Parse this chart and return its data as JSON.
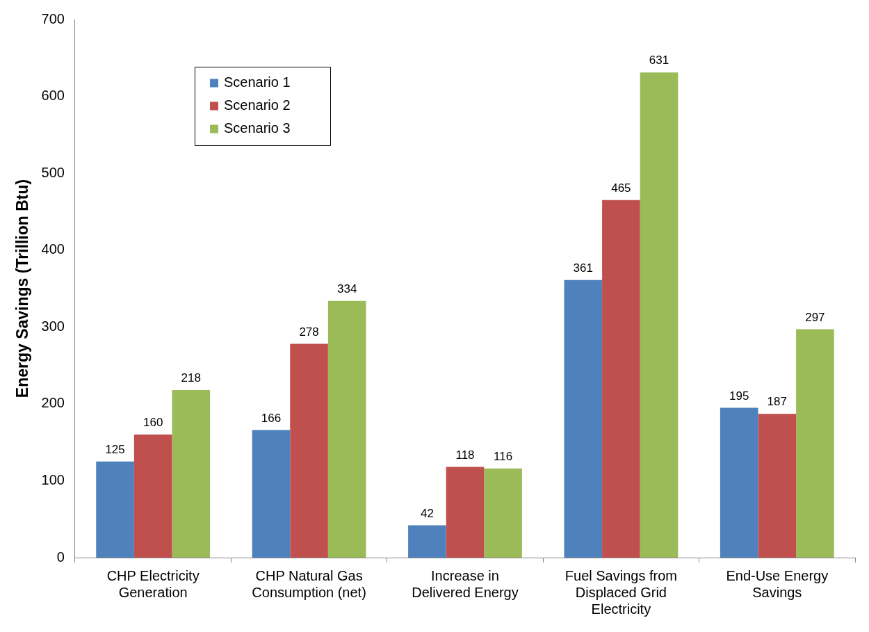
{
  "chart_data": {
    "type": "bar",
    "ylabel": "Energy Savings (Trillion Btu)",
    "categories": [
      "CHP Electricity Generation",
      "CHP Natural Gas Consumption (net)",
      "Increase in Delivered Energy",
      "Fuel Savings from Displaced Grid Electricity",
      "End-Use Energy Savings"
    ],
    "series": [
      {
        "name": "Scenario 1",
        "color": "#4f81bd",
        "values": [
          125,
          166,
          42,
          361,
          195
        ]
      },
      {
        "name": "Scenario 2",
        "color": "#c0504d",
        "values": [
          160,
          278,
          118,
          465,
          187
        ]
      },
      {
        "name": "Scenario 3",
        "color": "#9bbb59",
        "values": [
          218,
          334,
          116,
          631,
          297
        ]
      }
    ],
    "ylim": [
      0,
      700
    ],
    "yticks": [
      0,
      100,
      200,
      300,
      400,
      500,
      600,
      700
    ],
    "grid": false,
    "legend": "top left",
    "data_labels": true
  }
}
